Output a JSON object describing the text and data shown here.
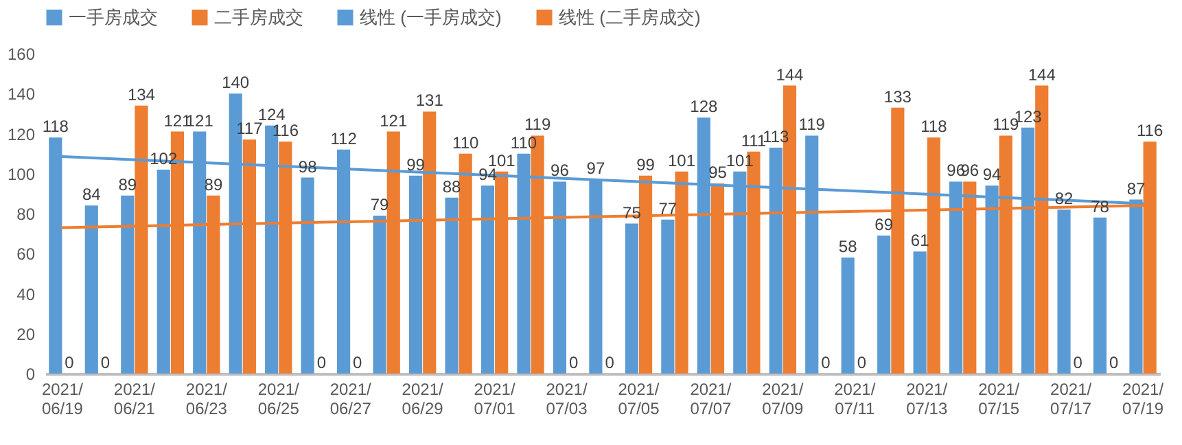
{
  "chart_data": {
    "type": "bar",
    "categories": [
      "2021/06/19",
      null,
      "2021/06/21",
      null,
      "2021/06/23",
      null,
      "2021/06/25",
      null,
      "2021/06/27",
      null,
      "2021/06/29",
      null,
      "2021/07/01",
      null,
      "2021/07/03",
      null,
      "2021/07/05",
      null,
      "2021/07/07",
      null,
      "2021/07/09",
      null,
      "2021/07/11",
      null,
      "2021/07/13",
      null,
      "2021/07/15",
      null,
      "2021/07/17",
      null,
      "2021/07/19"
    ],
    "series": [
      {
        "name": "一手房成交",
        "color": "#5b9bd5",
        "values": [
          118,
          84,
          89,
          102,
          121,
          140,
          124,
          98,
          112,
          79,
          99,
          88,
          94,
          110,
          96,
          97,
          75,
          77,
          128,
          101,
          113,
          119,
          58,
          69,
          61,
          96,
          94,
          123,
          82,
          78,
          87
        ]
      },
      {
        "name": "二手房成交",
        "color": "#ed7d31",
        "values": [
          0,
          0,
          134,
          121,
          89,
          117,
          116,
          0,
          0,
          121,
          131,
          110,
          101,
          119,
          0,
          0,
          99,
          101,
          95,
          111,
          144,
          0,
          0,
          133,
          118,
          96,
          119,
          144,
          0,
          0,
          116
        ]
      },
      {
        "name": "线性 (一手房成交)",
        "type": "line",
        "color": "#5b9bd5",
        "x": [
          "2021/06/19",
          "2021/07/19"
        ],
        "values": [
          108.5,
          85
        ],
        "value_labels": [
          null,
          null
        ]
      },
      {
        "name": "线性 (二手房成交)",
        "type": "line",
        "color": "#ed7d31",
        "x": [
          "2021/06/19",
          "2021/07/19"
        ],
        "values": [
          73,
          84
        ],
        "value_labels": [
          null,
          null
        ]
      }
    ],
    "ylim": [
      0,
      160
    ],
    "yticks": [
      0,
      20,
      40,
      60,
      80,
      100,
      120,
      140,
      160
    ],
    "data_labels": true,
    "legend": "top"
  }
}
